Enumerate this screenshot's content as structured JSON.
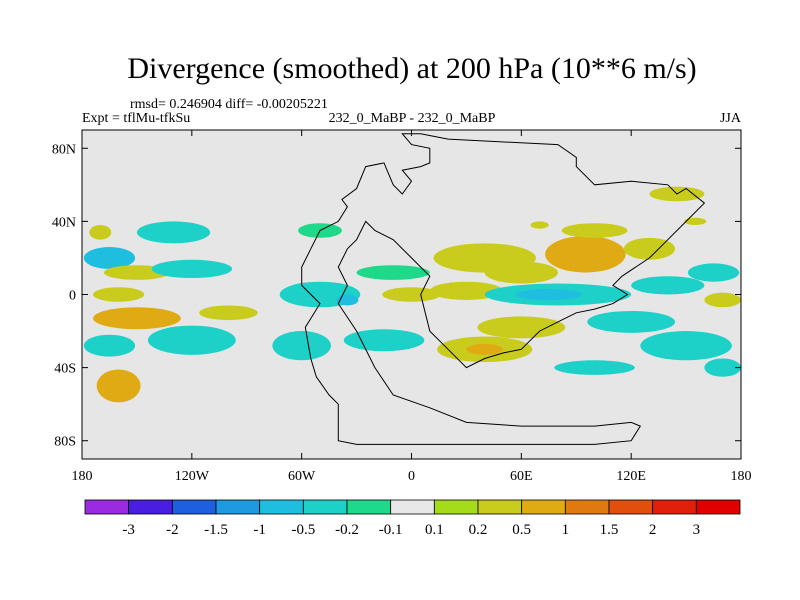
{
  "chart_data": {
    "type": "heatmap",
    "title": "Divergence (smoothed) at 200 hPa (10**6 m/s)",
    "stats_text": "rmsd= 0.246904 diff= -0.00205221",
    "experiment_label": "Expt = tflMu-tfkSu",
    "center_label": "232_0_MaBP - 232_0_MaBP",
    "season_label": "JJA",
    "x_range": [
      -180,
      180
    ],
    "y_range": [
      -90,
      90
    ],
    "x_ticks": [
      {
        "value": -180,
        "label": "180"
      },
      {
        "value": -120,
        "label": "120W"
      },
      {
        "value": -60,
        "label": "60W"
      },
      {
        "value": 0,
        "label": "0"
      },
      {
        "value": 60,
        "label": "60E"
      },
      {
        "value": 120,
        "label": "120E"
      },
      {
        "value": 180,
        "label": "180"
      }
    ],
    "y_ticks": [
      {
        "value": 80,
        "label": "80N"
      },
      {
        "value": 40,
        "label": "40N"
      },
      {
        "value": 0,
        "label": "0"
      },
      {
        "value": -40,
        "label": "40S"
      },
      {
        "value": -80,
        "label": "80S"
      }
    ],
    "colorbar": {
      "labels": [
        "-3",
        "-2",
        "-1.5",
        "-1",
        "-0.5",
        "-0.2",
        "-0.1",
        "0.1",
        "0.2",
        "0.5",
        "1",
        "1.5",
        "2",
        "3"
      ],
      "colors": [
        "#9a2be0",
        "#4a1ee0",
        "#1e5fe0",
        "#1f9ae0",
        "#1fbde0",
        "#1dd1c8",
        "#1fd98a",
        "#e8e8e8",
        "#a4dc1c",
        "#c9cc1c",
        "#e0aa14",
        "#e07a10",
        "#e0500c",
        "#e0200a",
        "#e00000"
      ]
    },
    "land_outline_color": "#000000",
    "background_color": "#e6e6e6",
    "regions": [
      {
        "lon": -165,
        "lat": 20,
        "rx": 14,
        "ry": 6,
        "value": -1
      },
      {
        "lon": -170,
        "lat": 34,
        "rx": 6,
        "ry": 4,
        "value": 0.2
      },
      {
        "lon": -130,
        "lat": 34,
        "rx": 20,
        "ry": 6,
        "value": -0.3
      },
      {
        "lon": -150,
        "lat": 12,
        "rx": 18,
        "ry": 4,
        "value": 0.2
      },
      {
        "lon": -120,
        "lat": 14,
        "rx": 22,
        "ry": 5,
        "value": -0.3
      },
      {
        "lon": -160,
        "lat": 0,
        "rx": 14,
        "ry": 4,
        "value": 0.3
      },
      {
        "lon": -150,
        "lat": -13,
        "rx": 24,
        "ry": 6,
        "value": 0.6
      },
      {
        "lon": -165,
        "lat": -28,
        "rx": 14,
        "ry": 6,
        "value": -0.3
      },
      {
        "lon": -160,
        "lat": -50,
        "rx": 12,
        "ry": 9,
        "value": 0.6
      },
      {
        "lon": -120,
        "lat": -25,
        "rx": 24,
        "ry": 8,
        "value": -0.3
      },
      {
        "lon": -100,
        "lat": -10,
        "rx": 16,
        "ry": 4,
        "value": 0.4
      },
      {
        "lon": -50,
        "lat": 0,
        "rx": 22,
        "ry": 7,
        "value": -0.4
      },
      {
        "lon": -35,
        "lat": -3,
        "rx": 6,
        "ry": 3,
        "value": -1
      },
      {
        "lon": -60,
        "lat": -28,
        "rx": 16,
        "ry": 8,
        "value": -0.3
      },
      {
        "lon": -15,
        "lat": -25,
        "rx": 22,
        "ry": 6,
        "value": -0.3
      },
      {
        "lon": -50,
        "lat": 35,
        "rx": 12,
        "ry": 4,
        "value": -0.2
      },
      {
        "lon": -10,
        "lat": 12,
        "rx": 20,
        "ry": 4,
        "value": -0.2
      },
      {
        "lon": 0,
        "lat": 0,
        "rx": 16,
        "ry": 4,
        "value": 0.3
      },
      {
        "lon": 30,
        "lat": 2,
        "rx": 20,
        "ry": 5,
        "value": 0.2
      },
      {
        "lon": 40,
        "lat": 20,
        "rx": 28,
        "ry": 8,
        "value": 0.4
      },
      {
        "lon": 60,
        "lat": 12,
        "rx": 20,
        "ry": 6,
        "value": 0.3
      },
      {
        "lon": 95,
        "lat": 22,
        "rx": 22,
        "ry": 10,
        "value": 0.6
      },
      {
        "lon": 100,
        "lat": 35,
        "rx": 18,
        "ry": 4,
        "value": 0.2
      },
      {
        "lon": 130,
        "lat": 25,
        "rx": 14,
        "ry": 6,
        "value": 0.3
      },
      {
        "lon": 80,
        "lat": 0,
        "rx": 40,
        "ry": 6,
        "value": -0.5
      },
      {
        "lon": 75,
        "lat": 0,
        "rx": 18,
        "ry": 3,
        "value": -1
      },
      {
        "lon": 140,
        "lat": 5,
        "rx": 20,
        "ry": 5,
        "value": -0.3
      },
      {
        "lon": 165,
        "lat": 12,
        "rx": 14,
        "ry": 5,
        "value": -0.3
      },
      {
        "lon": 170,
        "lat": -3,
        "rx": 10,
        "ry": 4,
        "value": 0.2
      },
      {
        "lon": 60,
        "lat": -18,
        "rx": 24,
        "ry": 6,
        "value": 0.3
      },
      {
        "lon": 120,
        "lat": -15,
        "rx": 24,
        "ry": 6,
        "value": -0.3
      },
      {
        "lon": 40,
        "lat": -30,
        "rx": 26,
        "ry": 7,
        "value": 0.4
      },
      {
        "lon": 40,
        "lat": -30,
        "rx": 10,
        "ry": 3,
        "value": 0.7
      },
      {
        "lon": 150,
        "lat": -28,
        "rx": 25,
        "ry": 8,
        "value": -0.3
      },
      {
        "lon": 100,
        "lat": -40,
        "rx": 22,
        "ry": 4,
        "value": -0.3
      },
      {
        "lon": 170,
        "lat": -40,
        "rx": 10,
        "ry": 5,
        "value": -0.3
      },
      {
        "lon": 145,
        "lat": 55,
        "rx": 15,
        "ry": 4,
        "value": 0.2
      },
      {
        "lon": 70,
        "lat": 38,
        "rx": 5,
        "ry": 2,
        "value": 0.2
      },
      {
        "lon": 155,
        "lat": 40,
        "rx": 6,
        "ry": 2,
        "value": 0.2
      }
    ],
    "coastline": [
      [
        -40,
        -72
      ],
      [
        -40,
        -60
      ],
      [
        -45,
        -55
      ],
      [
        -52,
        -45
      ],
      [
        -55,
        -35
      ],
      [
        -58,
        -18
      ],
      [
        -50,
        -5
      ],
      [
        -60,
        5
      ],
      [
        -60,
        15
      ],
      [
        -55,
        25
      ],
      [
        -50,
        35
      ],
      [
        -40,
        40
      ],
      [
        -35,
        48
      ],
      [
        -38,
        52
      ],
      [
        -30,
        58
      ],
      [
        -25,
        70
      ],
      [
        -15,
        72
      ],
      [
        -10,
        60
      ],
      [
        -5,
        55
      ],
      [
        0,
        62
      ],
      [
        -5,
        68
      ],
      [
        5,
        70
      ],
      [
        10,
        72
      ],
      [
        10,
        80
      ],
      [
        0,
        82
      ],
      [
        -5,
        88
      ],
      [
        5,
        88
      ],
      [
        20,
        85
      ],
      [
        40,
        84
      ],
      [
        80,
        82
      ],
      [
        90,
        75
      ],
      [
        90,
        70
      ],
      [
        100,
        60
      ],
      [
        120,
        62
      ],
      [
        140,
        60
      ],
      [
        145,
        55
      ],
      [
        150,
        58
      ],
      [
        160,
        50
      ],
      [
        150,
        40
      ],
      [
        140,
        30
      ],
      [
        130,
        20
      ],
      [
        115,
        10
      ],
      [
        110,
        5
      ],
      [
        118,
        0
      ],
      [
        110,
        -5
      ],
      [
        100,
        -8
      ],
      [
        90,
        -10
      ],
      [
        80,
        -15
      ],
      [
        70,
        -20
      ],
      [
        60,
        -30
      ],
      [
        50,
        -32
      ],
      [
        40,
        -35
      ],
      [
        30,
        -40
      ],
      [
        20,
        -30
      ],
      [
        10,
        -20
      ],
      [
        5,
        0
      ],
      [
        10,
        10
      ],
      [
        0,
        20
      ],
      [
        -10,
        30
      ],
      [
        -20,
        35
      ],
      [
        -25,
        40
      ],
      [
        -30,
        30
      ],
      [
        -35,
        25
      ],
      [
        -40,
        15
      ],
      [
        -35,
        5
      ],
      [
        -40,
        -5
      ],
      [
        -30,
        -20
      ],
      [
        -20,
        -40
      ],
      [
        -10,
        -55
      ],
      [
        10,
        -62
      ],
      [
        30,
        -70
      ],
      [
        60,
        -72
      ],
      [
        100,
        -72
      ],
      [
        120,
        -70
      ],
      [
        125,
        -72
      ],
      [
        120,
        -80
      ],
      [
        100,
        -82
      ],
      [
        60,
        -82
      ],
      [
        0,
        -82
      ],
      [
        -30,
        -82
      ],
      [
        -40,
        -80
      ],
      [
        -40,
        -72
      ]
    ]
  }
}
